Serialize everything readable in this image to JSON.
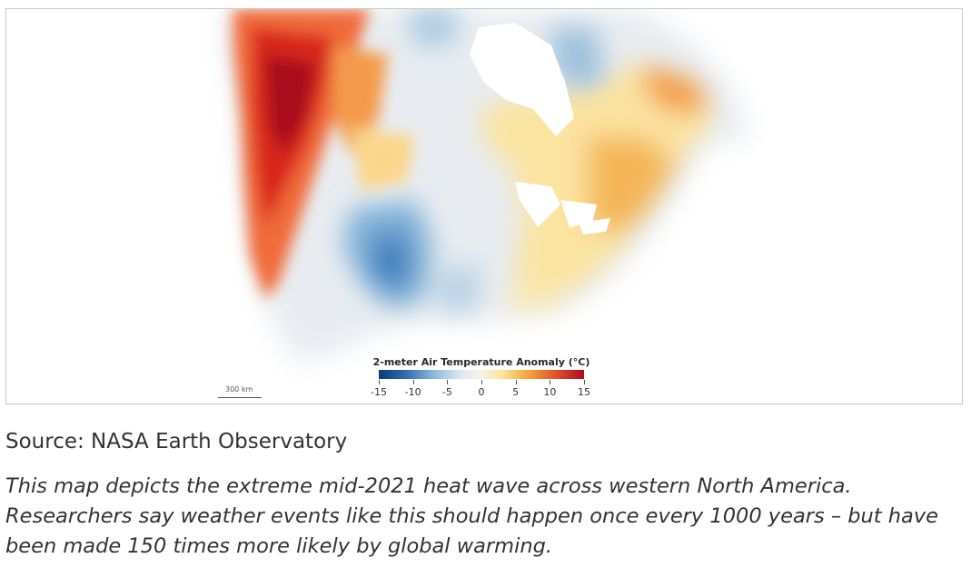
{
  "map": {
    "legend_title": "2-meter Air Temperature Anomaly (°C)",
    "legend_ticks": [
      "-15",
      "-10",
      "-5",
      "0",
      "5",
      "10",
      "15"
    ],
    "legend_range": [
      -15,
      15
    ],
    "scale_label": "300 km",
    "colors": {
      "extreme_hot": "#b00a20",
      "hot": "#e2522a",
      "warm": "#f4a83e",
      "mild_warm": "#fbe49a",
      "neutral": "#eef0f2",
      "cool": "#8ab8da",
      "cold": "#2f6fb0"
    }
  },
  "text": {
    "source": "Source: NASA Earth Observatory",
    "caption": "This map depicts the extreme mid-2021 heat wave across western North America. Researchers say weather events like this should happen once every 1000 years – but have been made 150 times more likely by global warming."
  }
}
